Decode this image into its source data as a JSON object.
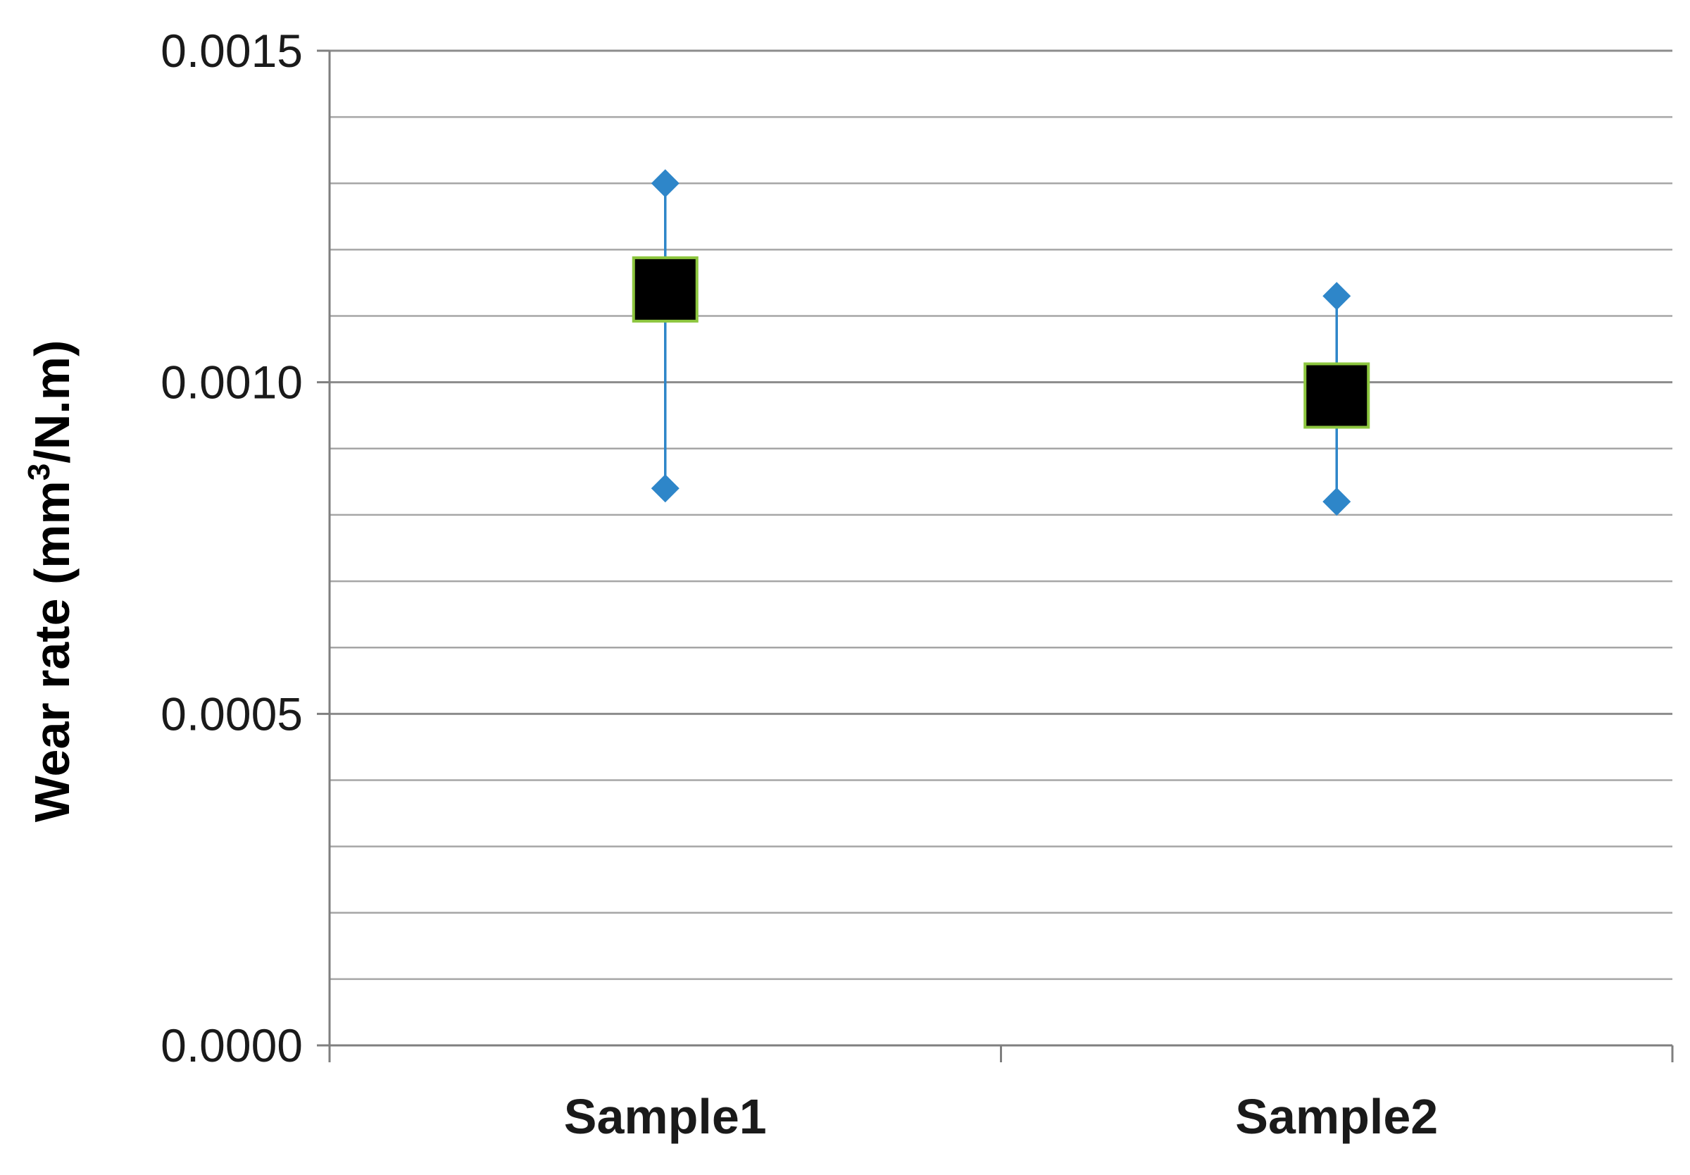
{
  "chart_data": {
    "type": "scatter",
    "title": "",
    "xlabel": "",
    "ylabel": "Wear rate (mm³/N.m)",
    "ylabel_parts": [
      "Wear rate (mm",
      "3",
      "/N.m)"
    ],
    "ylim": [
      0,
      0.0015
    ],
    "yticks": [
      "0.0000",
      "0.0005",
      "0.0010",
      "0.0015"
    ],
    "ytick_values": [
      0,
      0.0005,
      0.001,
      0.0015
    ],
    "minor_grid_step": 0.0001,
    "grid": true,
    "legend": "none",
    "categories": [
      "Sample1",
      "Sample2"
    ],
    "series": [
      {
        "role": "mean",
        "marker": "square",
        "values": [
          0.00114,
          0.00098
        ]
      },
      {
        "role": "max",
        "marker": "diamond",
        "values": [
          0.0013,
          0.00113
        ]
      },
      {
        "role": "min",
        "marker": "diamond",
        "values": [
          0.00084,
          0.00082
        ]
      }
    ],
    "colors": {
      "axis": "#7f7f7f",
      "grid": "#a6a6a6",
      "range": "#2e86c9",
      "mean_fill": "#000000",
      "mean_stroke": "#8dc63f"
    }
  }
}
